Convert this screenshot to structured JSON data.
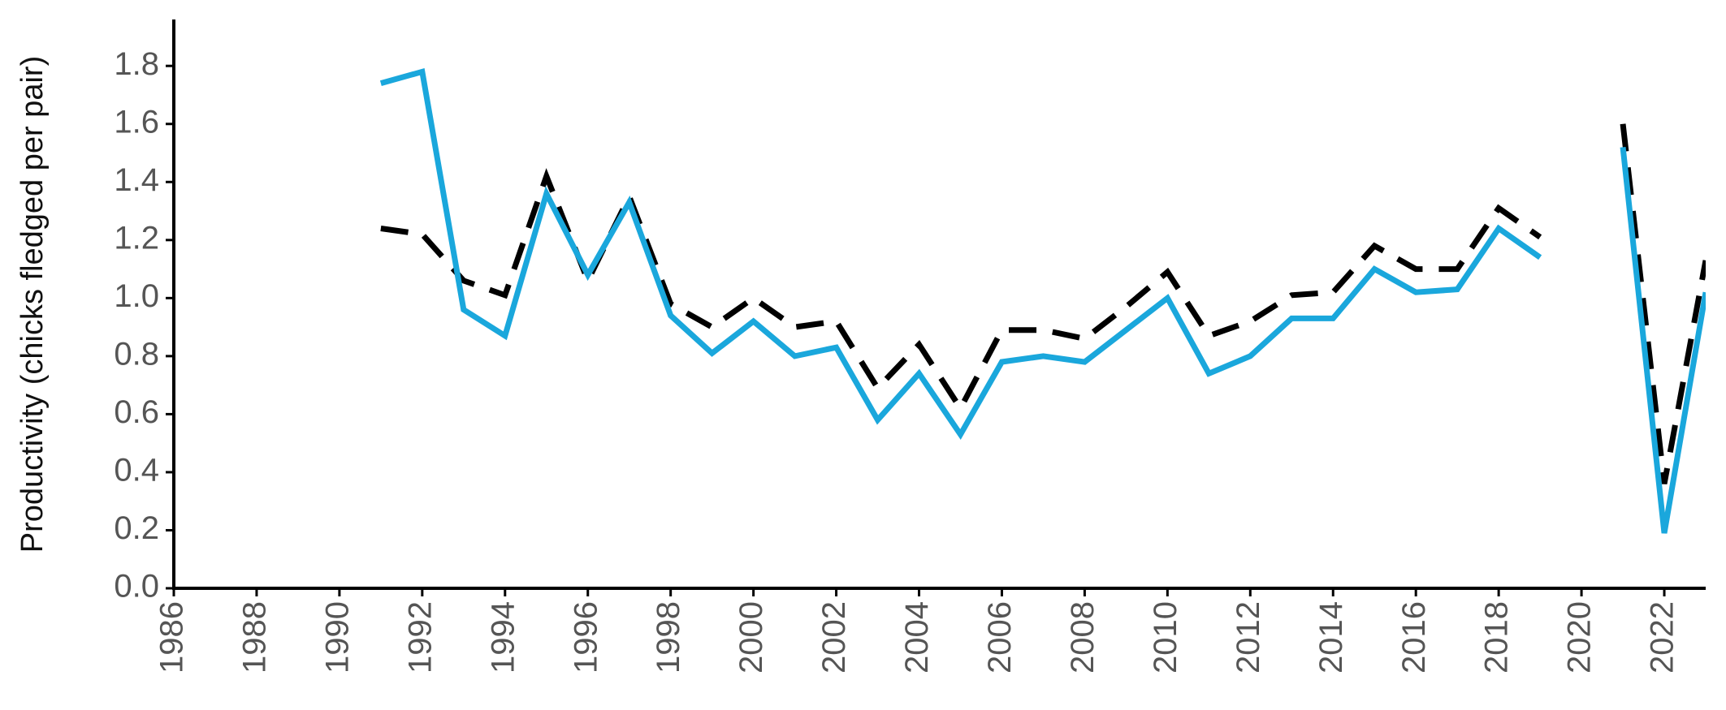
{
  "chart_data": {
    "type": "line",
    "y_label": "Productivity (chicks fledged per pair)",
    "x": [
      1991,
      1992,
      1993,
      1994,
      1995,
      1996,
      1997,
      1998,
      1999,
      2000,
      2001,
      2002,
      2003,
      2004,
      2005,
      2006,
      2007,
      2008,
      2009,
      2010,
      2011,
      2012,
      2013,
      2014,
      2015,
      2016,
      2017,
      2018,
      2019,
      2020,
      2021,
      2022,
      2023
    ],
    "series": [
      {
        "color": "#1aa7dc",
        "dash": "solid",
        "values": [
          1.74,
          1.78,
          0.96,
          0.87,
          1.36,
          1.08,
          1.33,
          0.94,
          0.81,
          0.92,
          0.8,
          0.83,
          0.58,
          0.74,
          0.53,
          0.78,
          0.8,
          0.78,
          0.89,
          1.0,
          0.74,
          0.8,
          0.93,
          0.93,
          1.1,
          1.02,
          1.03,
          1.24,
          1.14,
          null,
          1.52,
          0.19,
          1.02
        ]
      },
      {
        "color": "#000000",
        "dash": "dashed",
        "values": [
          1.24,
          1.22,
          1.06,
          1.01,
          1.42,
          1.06,
          1.35,
          0.98,
          0.9,
          1.0,
          0.9,
          0.92,
          0.69,
          0.84,
          0.62,
          0.89,
          0.89,
          0.86,
          0.97,
          1.09,
          0.87,
          0.92,
          1.01,
          1.02,
          1.18,
          1.1,
          1.1,
          1.31,
          1.21,
          null,
          1.6,
          0.36,
          1.13
        ]
      }
    ],
    "xlim": [
      1986,
      2023
    ],
    "xticks": [
      1986,
      1988,
      1990,
      1992,
      1994,
      1996,
      1998,
      2000,
      2002,
      2004,
      2006,
      2008,
      2010,
      2012,
      2014,
      2016,
      2018,
      2020,
      2022
    ],
    "ylim": [
      0,
      1.96
    ],
    "yticks": [
      {
        "value": 0,
        "label": "0.0"
      },
      0.2,
      0.4,
      0.6,
      0.8,
      {
        "value": 1,
        "label": "1.0"
      },
      1.2,
      1.4,
      1.6,
      1.8
    ],
    "grid": false
  }
}
